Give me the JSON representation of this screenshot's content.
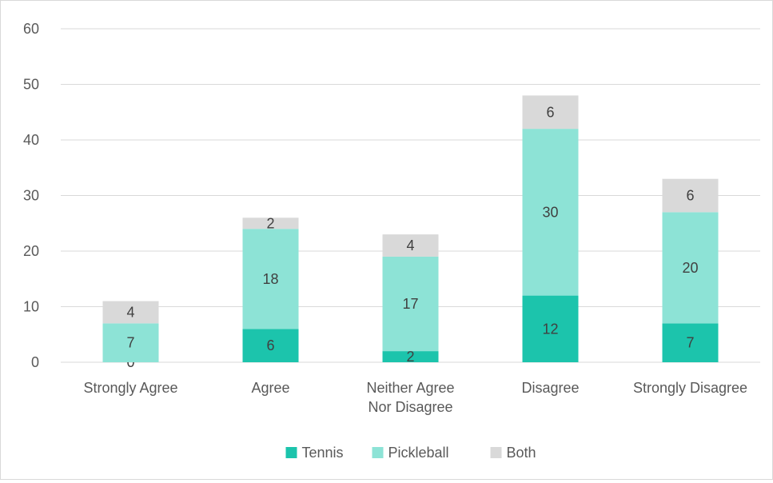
{
  "chart_data": {
    "type": "bar",
    "stacked": true,
    "title": "",
    "xlabel": "",
    "ylabel": "",
    "categories": [
      "Strongly Agree",
      "Agree",
      "Neither Agree Nor Disagree",
      "Disagree",
      "Strongly Disagree"
    ],
    "category_lines": [
      [
        "Strongly Agree"
      ],
      [
        "Agree"
      ],
      [
        "Neither Agree",
        "Nor Disagree"
      ],
      [
        "Disagree"
      ],
      [
        "Strongly Disagree"
      ]
    ],
    "series": [
      {
        "name": "Tennis",
        "values": [
          0,
          6,
          2,
          12,
          7
        ],
        "color": "#1cc4ac"
      },
      {
        "name": "Pickleball",
        "values": [
          7,
          18,
          17,
          30,
          20
        ],
        "color": "#8de3d6"
      },
      {
        "name": "Both",
        "values": [
          4,
          2,
          4,
          6,
          6
        ],
        "color": "#d9d9d9"
      }
    ],
    "ylim": [
      0,
      60
    ],
    "yticks": [
      0,
      10,
      20,
      30,
      40,
      50,
      60
    ],
    "grid": true,
    "legend_position": "bottom"
  }
}
